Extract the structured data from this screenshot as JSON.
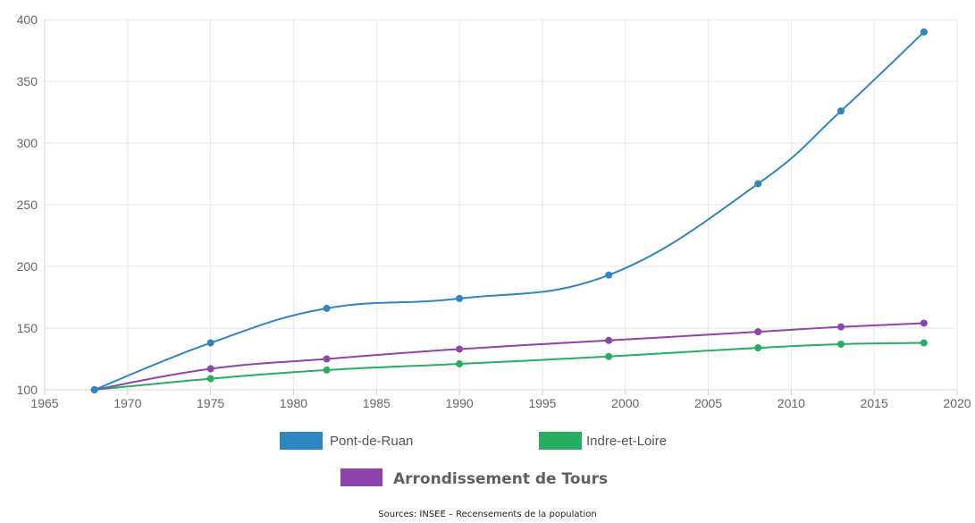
{
  "chart_data": {
    "type": "line",
    "xlim": [
      1965,
      2020
    ],
    "ylim": [
      100,
      400
    ],
    "x_ticks": [
      1965,
      1970,
      1975,
      1980,
      1985,
      1990,
      1995,
      2000,
      2005,
      2010,
      2015,
      2020
    ],
    "y_ticks": [
      100,
      150,
      200,
      250,
      300,
      350,
      400
    ],
    "grid": true,
    "x": [
      1968,
      1975,
      1982,
      1990,
      1999,
      2008,
      2013,
      2018
    ],
    "series": [
      {
        "name": "Pont-de-Ruan",
        "color": "#2e86c1",
        "values": [
          100,
          138,
          166,
          174,
          193,
          267,
          326,
          390
        ]
      },
      {
        "name": "Indre-et-Loire",
        "color": "#27ae60",
        "values": [
          100,
          109,
          116,
          121,
          127,
          134,
          137,
          138
        ]
      },
      {
        "name": "Arrondissement de Tours",
        "color": "#8e44ad",
        "values": [
          100,
          117,
          125,
          133,
          140,
          147,
          151,
          154
        ]
      }
    ],
    "legend_position": "bottom"
  },
  "source_text": "Sources: INSEE – Recensements de la population"
}
